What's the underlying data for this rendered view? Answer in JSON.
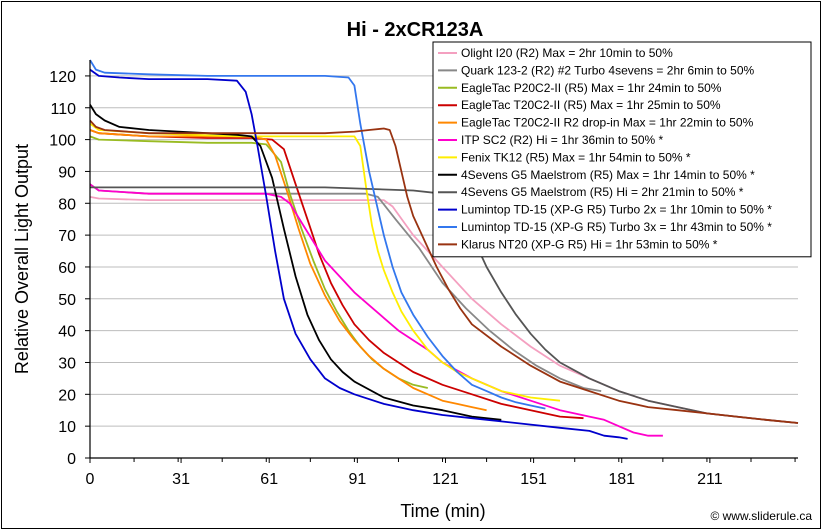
{
  "chart_data": {
    "type": "line",
    "title": "Hi - 2xCR123A",
    "xlabel": "Time (min)",
    "ylabel": "Relative Overall Light Output",
    "credit": "© www.sliderule.ca",
    "xlim": [
      0,
      241
    ],
    "ylim": [
      0,
      125
    ],
    "xticks": [
      0,
      31,
      61,
      91,
      121,
      151,
      181,
      211
    ],
    "yticks": [
      0,
      10,
      20,
      30,
      40,
      50,
      60,
      70,
      80,
      90,
      100,
      110,
      120
    ],
    "grid": "horizontal",
    "legend_position": "top-right",
    "series": [
      {
        "name": "Olight I20 (R2) Max = 2hr 10min to 50%",
        "color": "#f4a0c0",
        "x": [
          0,
          3,
          20,
          50,
          80,
          100,
          103,
          110,
          120,
          130,
          140,
          150,
          160,
          170,
          180,
          190,
          200,
          210,
          220,
          230,
          241
        ],
        "y": [
          82,
          81.5,
          81,
          81,
          81,
          81,
          79,
          70,
          60,
          50,
          42,
          35,
          29,
          25,
          21,
          18,
          16,
          14,
          13,
          12,
          11
        ]
      },
      {
        "name": "Quark 123-2 (R2) #2 Turbo 4sevens = 2hr 6min to 50%",
        "color": "#888888",
        "x": [
          0,
          3,
          20,
          50,
          80,
          94,
          98,
          104,
          112,
          120,
          128,
          136,
          144,
          152,
          160,
          168,
          174
        ],
        "y": [
          86,
          84,
          83,
          83,
          83,
          83,
          82,
          75,
          66,
          55,
          47,
          40,
          34,
          29,
          25,
          22,
          21
        ]
      },
      {
        "name": "EagleTac P20C2-II (R5) Max = 1hr 24min to 50%",
        "color": "#99bb22",
        "x": [
          0,
          3,
          20,
          40,
          55,
          60,
          65,
          68,
          72,
          76,
          80,
          84,
          88,
          92,
          96,
          100,
          105,
          110,
          115
        ],
        "y": [
          101,
          100,
          99.5,
          99,
          99,
          98.5,
          93,
          83,
          72,
          62,
          53,
          46,
          40,
          35,
          31,
          28,
          25,
          23,
          22
        ]
      },
      {
        "name": "EagleTac T20C2-II (R5) Max = 1hr 25min to 50%",
        "color": "#cc0000",
        "x": [
          0,
          3,
          20,
          40,
          55,
          62,
          66,
          70,
          74,
          78,
          82,
          86,
          90,
          95,
          100,
          110,
          120,
          130,
          140,
          150,
          160,
          168
        ],
        "y": [
          103,
          102,
          101,
          100.5,
          100.5,
          100,
          97,
          86,
          75,
          64,
          55,
          48,
          42,
          37,
          33,
          27,
          23,
          20,
          17,
          15,
          13,
          12.5
        ]
      },
      {
        "name": "EagleTac T20C2-II R2 drop-in Max = 1hr 22min to 50%",
        "color": "#ff8800",
        "x": [
          0,
          3,
          20,
          40,
          55,
          60,
          63,
          67,
          71,
          75,
          80,
          85,
          90,
          95,
          100,
          105,
          110,
          115,
          120,
          125,
          130,
          135
        ],
        "y": [
          103,
          102,
          101,
          101,
          101,
          100,
          95,
          84,
          72,
          61,
          51,
          43,
          37,
          32,
          28,
          25,
          22,
          20,
          18,
          17,
          16,
          15
        ]
      },
      {
        "name": "ITP SC2 (R2) Hi = 1hr 36min to 50% *",
        "color": "#ff00cc",
        "x": [
          0,
          3,
          20,
          40,
          60,
          65,
          68,
          72,
          76,
          80,
          85,
          90,
          95,
          100,
          105,
          110,
          115,
          120,
          130,
          140,
          150,
          160,
          170,
          175,
          180,
          185,
          190,
          195
        ],
        "y": [
          86,
          84,
          83,
          83,
          83,
          82,
          80,
          74,
          68,
          62,
          57,
          52,
          48,
          44,
          40,
          37,
          34,
          30,
          25,
          21,
          18,
          15,
          13,
          12,
          10,
          8,
          7,
          7
        ]
      },
      {
        "name": "Fenix TK12 (R5) Max = 1hr 54min to 50% *",
        "color": "#ffee00",
        "x": [
          0,
          3,
          20,
          50,
          80,
          90,
          92,
          94,
          96,
          98,
          100,
          103,
          106,
          110,
          115,
          120,
          125,
          130,
          135,
          140,
          150,
          160
        ],
        "y": [
          105,
          103,
          102,
          101,
          101,
          101,
          98,
          85,
          73,
          65,
          59,
          52,
          46,
          40,
          34,
          30,
          27,
          25,
          23,
          21,
          19,
          18
        ]
      },
      {
        "name": "4Sevens G5 Maelstrom (R5) Max = 1hr 14min to 50% *",
        "color": "#000000",
        "x": [
          0,
          2,
          5,
          10,
          20,
          30,
          40,
          50,
          55,
          58,
          62,
          66,
          70,
          74,
          78,
          82,
          86,
          90,
          100,
          110,
          120,
          130,
          140
        ],
        "y": [
          111,
          108,
          106,
          104,
          103,
          102.5,
          102,
          101.5,
          101,
          98,
          88,
          72,
          57,
          45,
          37,
          31,
          27,
          24,
          19,
          16.5,
          15,
          13,
          12
        ]
      },
      {
        "name": "4Sevens G5 Maelstrom (R5) Hi = 2hr 21min to 50% *",
        "color": "#555555",
        "x": [
          0,
          5,
          20,
          50,
          80,
          110,
          120,
          123,
          126,
          130,
          135,
          140,
          145,
          150,
          155,
          160,
          170,
          180,
          190,
          200,
          210,
          220,
          230,
          241
        ],
        "y": [
          85,
          85,
          85,
          85,
          85,
          84,
          83,
          82,
          78,
          70,
          60,
          52,
          45,
          39,
          34,
          30,
          25,
          21,
          18,
          16,
          14,
          13,
          12,
          11
        ]
      },
      {
        "name": "Lumintop TD-15 (XP-G R5) Turbo 2x = 1hr 10min to 50% *",
        "color": "#0000cc",
        "x": [
          0,
          3,
          10,
          20,
          30,
          40,
          50,
          53,
          55,
          57,
          60,
          63,
          66,
          70,
          75,
          80,
          85,
          90,
          100,
          110,
          120,
          130,
          140,
          150,
          160,
          170,
          175,
          180,
          183
        ],
        "y": [
          122,
          120,
          119.5,
          119,
          119,
          119,
          118.5,
          115,
          108,
          98,
          82,
          65,
          50,
          39,
          31,
          25,
          22,
          20,
          17,
          15,
          13.5,
          12.5,
          11.5,
          10.5,
          9.5,
          8.5,
          7,
          6.5,
          6
        ]
      },
      {
        "name": "Lumintop TD-15 (XP-G R5) Turbo 3x = 1hr 43min to 50% *",
        "color": "#3377ee",
        "x": [
          0,
          2,
          5,
          20,
          40,
          60,
          80,
          88,
          90,
          92,
          95,
          98,
          100,
          103,
          106,
          110,
          115,
          120,
          125,
          130,
          135,
          140,
          145,
          150,
          155
        ],
        "y": [
          125,
          122,
          121,
          120.5,
          120,
          120,
          120,
          119.5,
          117,
          105,
          90,
          78,
          70,
          60,
          52,
          45,
          38,
          32,
          27,
          23,
          21,
          19,
          17.5,
          16.5,
          15.5
        ]
      },
      {
        "name": "Klarus NT20 (XP-G R5) Hi = 1hr 53min to 50% *",
        "color": "#993311",
        "x": [
          0,
          2,
          5,
          20,
          40,
          60,
          80,
          90,
          95,
          100,
          102,
          104,
          106,
          108,
          110,
          114,
          118,
          122,
          126,
          130,
          140,
          150,
          160,
          170,
          180,
          190,
          200,
          210,
          220,
          230,
          241
        ],
        "y": [
          106,
          104,
          103,
          102,
          102,
          102,
          102,
          102.5,
          103,
          103.5,
          103,
          98,
          90,
          82,
          76,
          68,
          60,
          53,
          47,
          42,
          35,
          29,
          24,
          21,
          18,
          16,
          15,
          14,
          13,
          12,
          11
        ]
      }
    ]
  }
}
